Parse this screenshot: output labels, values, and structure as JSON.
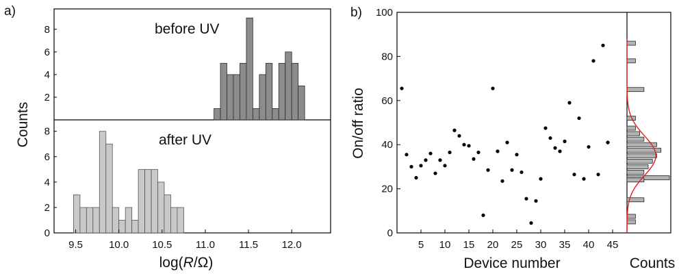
{
  "panel_labels": {
    "a": "a)",
    "b": "b)"
  },
  "chart_data": [
    {
      "type": "bar",
      "subtype": "histogram",
      "panel": "a (top)",
      "label": "before UV",
      "x_range": [
        9.25,
        12.45
      ],
      "bin_width": 0.075,
      "bins": [
        {
          "x": 11.1,
          "count": 1
        },
        {
          "x": 11.175,
          "count": 5
        },
        {
          "x": 11.25,
          "count": 4
        },
        {
          "x": 11.325,
          "count": 4
        },
        {
          "x": 11.4,
          "count": 5
        },
        {
          "x": 11.475,
          "count": 9
        },
        {
          "x": 11.55,
          "count": 1
        },
        {
          "x": 11.625,
          "count": 4
        },
        {
          "x": 11.7,
          "count": 5
        },
        {
          "x": 11.775,
          "count": 1
        },
        {
          "x": 11.85,
          "count": 5
        },
        {
          "x": 11.925,
          "count": 6
        },
        {
          "x": 12.0,
          "count": 5
        },
        {
          "x": 12.075,
          "count": 3
        }
      ],
      "ylim": [
        0,
        9.8
      ],
      "yticks": [
        2,
        4,
        6,
        8
      ]
    },
    {
      "type": "bar",
      "subtype": "histogram",
      "panel": "a (bottom)",
      "label": "after UV",
      "x_range": [
        9.25,
        12.45
      ],
      "bin_width": 0.075,
      "bins": [
        {
          "x": 9.475,
          "count": 3
        },
        {
          "x": 9.55,
          "count": 2
        },
        {
          "x": 9.625,
          "count": 2
        },
        {
          "x": 9.7,
          "count": 2
        },
        {
          "x": 9.775,
          "count": 8
        },
        {
          "x": 9.85,
          "count": 7
        },
        {
          "x": 9.925,
          "count": 2
        },
        {
          "x": 10.0,
          "count": 1
        },
        {
          "x": 10.075,
          "count": 2
        },
        {
          "x": 10.15,
          "count": 1
        },
        {
          "x": 10.225,
          "count": 5
        },
        {
          "x": 10.3,
          "count": 5
        },
        {
          "x": 10.375,
          "count": 5
        },
        {
          "x": 10.45,
          "count": 4
        },
        {
          "x": 10.525,
          "count": 3
        },
        {
          "x": 10.6,
          "count": 2
        },
        {
          "x": 10.675,
          "count": 2
        }
      ],
      "ylim": [
        0,
        8.9
      ],
      "yticks": [
        0,
        2,
        4,
        6,
        8
      ],
      "xticks": [
        "9.5",
        "10.0",
        "10.5",
        "11.0",
        "11.5",
        "12.0"
      ],
      "xtick_values": [
        9.5,
        10.0,
        10.5,
        11.0,
        11.5,
        12.0
      ],
      "xlabel_parts": [
        "log(",
        "R",
        "/Ω)"
      ],
      "ylabel": "Counts"
    },
    {
      "type": "scatter",
      "panel": "b",
      "xlabel": "Device number",
      "ylabel": "On/off ratio",
      "xlim": [
        0,
        48
      ],
      "ylim": [
        0,
        100
      ],
      "xticks": [
        5,
        10,
        15,
        20,
        25,
        30,
        35,
        40,
        45
      ],
      "yticks": [
        0,
        20,
        40,
        60,
        80,
        100
      ],
      "points": [
        [
          1,
          65.5
        ],
        [
          2,
          35.5
        ],
        [
          3,
          30
        ],
        [
          4,
          25
        ],
        [
          5,
          30.5
        ],
        [
          6,
          33
        ],
        [
          7,
          36
        ],
        [
          8,
          27
        ],
        [
          9,
          33
        ],
        [
          10,
          30.5
        ],
        [
          11,
          36.5
        ],
        [
          12,
          46.5
        ],
        [
          13,
          44
        ],
        [
          14,
          40
        ],
        [
          15,
          39.5
        ],
        [
          16,
          33.5
        ],
        [
          17,
          36.5
        ],
        [
          18,
          8
        ],
        [
          19,
          28.5
        ],
        [
          20,
          65.5
        ],
        [
          21,
          37
        ],
        [
          22,
          23.5
        ],
        [
          23,
          41
        ],
        [
          24,
          28.5
        ],
        [
          25,
          35.5
        ],
        [
          26,
          27.5
        ],
        [
          27,
          15.5
        ],
        [
          28,
          4.5
        ],
        [
          29,
          14.5
        ],
        [
          30,
          24.5
        ],
        [
          31,
          47.5
        ],
        [
          32,
          43
        ],
        [
          33,
          38.5
        ],
        [
          34,
          37
        ],
        [
          35,
          41.5
        ],
        [
          36,
          59
        ],
        [
          37,
          26.5
        ],
        [
          38,
          52
        ],
        [
          39,
          24.5
        ],
        [
          40,
          39
        ],
        [
          41,
          78
        ],
        [
          42,
          26.5
        ],
        [
          43,
          85
        ],
        [
          44,
          41
        ]
      ]
    },
    {
      "type": "bar",
      "subtype": "horizontal histogram",
      "panel": "b (side)",
      "xlabel": "Counts",
      "bars": [
        {
          "y": 86,
          "count": 2
        },
        {
          "y": 78,
          "count": 2
        },
        {
          "y": 65,
          "count": 4
        },
        {
          "y": 52,
          "count": 2
        },
        {
          "y": 47.5,
          "count": 2
        },
        {
          "y": 45,
          "count": 3
        },
        {
          "y": 42.5,
          "count": 4
        },
        {
          "y": 40,
          "count": 7
        },
        {
          "y": 37.5,
          "count": 8
        },
        {
          "y": 35,
          "count": 7
        },
        {
          "y": 32.5,
          "count": 6
        },
        {
          "y": 30,
          "count": 5
        },
        {
          "y": 27.5,
          "count": 4
        },
        {
          "y": 25,
          "count": 10
        },
        {
          "y": 24,
          "count": 4
        },
        {
          "y": 15,
          "count": 4
        },
        {
          "y": 7.5,
          "count": 2
        },
        {
          "y": 5,
          "count": 2
        }
      ],
      "fit": {
        "type": "gaussian",
        "mean": 35,
        "sd": 9,
        "peak_count": 6.8
      }
    }
  ]
}
